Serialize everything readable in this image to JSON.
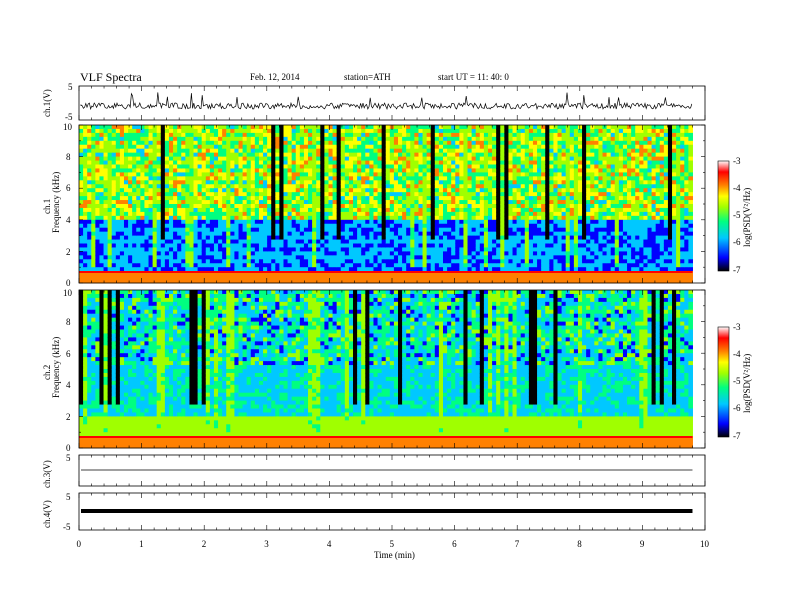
{
  "header": {
    "title": "VLF  Spectra",
    "date": "Feb. 12, 2014",
    "station": "station=ATH",
    "start_ut": "start  UT =   11: 40: 0"
  },
  "chart_data": [
    {
      "type": "line",
      "panel": "ch1-waveform",
      "ylabel": "ch.1(V)",
      "ylim": [
        -5,
        5
      ],
      "ytick_labels": [
        "5",
        "-5"
      ],
      "xlim": [
        0,
        10
      ],
      "description_level": 0.5
    },
    {
      "type": "heatmap",
      "panel": "ch1-spectrogram",
      "ylabel_channel": "ch.1",
      "ylabel": "Frequency  (kHz)",
      "ylim": [
        0,
        10
      ],
      "ytick_labels": [
        "0",
        "2",
        "4",
        "6",
        "8",
        "10"
      ],
      "xlim": [
        0,
        10
      ],
      "data_extent_min": 9.8,
      "colorbar": {
        "label": "log(PSD(V²/Hz)",
        "range": [
          -7,
          -3
        ],
        "tick_labels": [
          "-3",
          "-4",
          "-5",
          "-6",
          "-7"
        ]
      }
    },
    {
      "type": "heatmap",
      "panel": "ch2-spectrogram",
      "ylabel_channel": "ch.2",
      "ylabel": "Frequency  (kHz)",
      "ylim": [
        0,
        10
      ],
      "ytick_labels": [
        "0",
        "2",
        "4",
        "6",
        "8",
        "10"
      ],
      "xlim": [
        0,
        10
      ],
      "data_extent_min": 9.8,
      "colorbar": {
        "label": "log(PSD(V²/Hz)",
        "range": [
          -7,
          -3
        ],
        "tick_labels": [
          "-3",
          "-4",
          "-5",
          "-6",
          "-7"
        ]
      }
    },
    {
      "type": "line",
      "panel": "ch3-waveform",
      "ylabel": "ch.3(V)",
      "ylim": [
        -5,
        5
      ],
      "ytick_labels": [
        "5"
      ],
      "xlim": [
        0,
        10
      ]
    },
    {
      "type": "line",
      "panel": "ch4-waveform",
      "ylabel": "ch.4(V)",
      "ylim": [
        -5,
        5
      ],
      "ytick_labels": [
        "5",
        "-5"
      ],
      "xlim": [
        0,
        10
      ]
    }
  ],
  "xaxis": {
    "label": "Time  (min)",
    "range": [
      0,
      10
    ],
    "tick_labels": [
      "0",
      "1",
      "2",
      "3",
      "4",
      "5",
      "6",
      "7",
      "8",
      "9",
      "10"
    ]
  },
  "colors": {
    "frame": "#000000",
    "colormap": [
      "#000000",
      "#0000ff",
      "#00c8ff",
      "#00ff80",
      "#a0ff00",
      "#ffff00",
      "#ff8000",
      "#ff0000",
      "#ffffff"
    ]
  }
}
